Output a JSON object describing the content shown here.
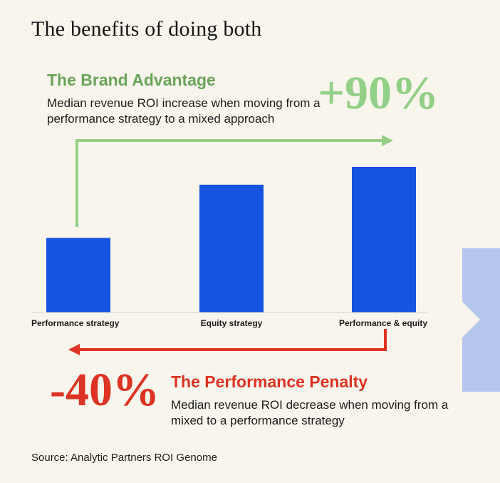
{
  "title": "The benefits of doing both",
  "brand_advantage": {
    "heading": "The Brand Advantage",
    "description": "Median revenue ROI increase when moving from a performance strategy to a mixed approach",
    "percent": "+90%"
  },
  "performance_penalty": {
    "heading": "The Performance Penalty",
    "description": "Median revenue ROI decrease when moving from a mixed to a performance strategy",
    "percent": "-40%"
  },
  "source": "Source: Analytic Partners ROI Genome",
  "colors": {
    "bar": "#1553e0",
    "green": "#93cf86",
    "green_text": "#6aa45a",
    "red": "#dc3324",
    "background": "#f8f5ec",
    "chevron": "#b7c6ee"
  },
  "icons": {
    "next": "chevron-right-icon"
  },
  "chart_data": {
    "type": "bar",
    "categories": [
      "Performance strategy",
      "Equity strategy",
      "Performance & equity"
    ],
    "values": [
      21,
      36,
      41
    ],
    "ylim": [
      0,
      41
    ],
    "title": "",
    "xlabel": "",
    "ylabel": "",
    "grid": false,
    "legend": "none"
  }
}
